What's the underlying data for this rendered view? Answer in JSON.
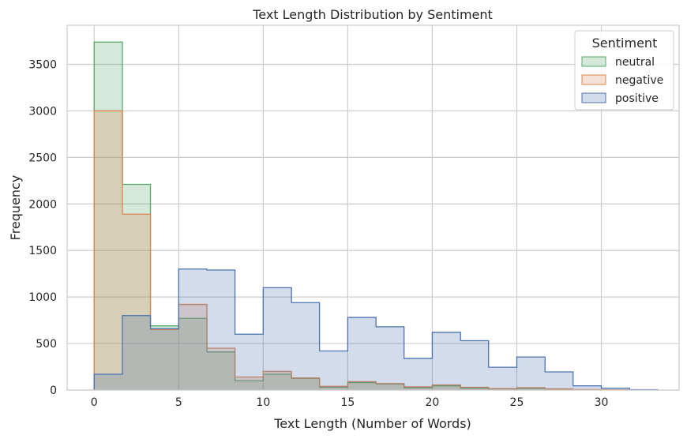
{
  "chart_data": {
    "type": "area",
    "title": "Text Length Distribution by Sentiment",
    "xlabel": "Text Length (Number of Words)",
    "ylabel": "Frequency",
    "xlim": [
      -1.6,
      34.6
    ],
    "ylim": [
      0,
      3920
    ],
    "xticks": [
      0,
      5,
      10,
      15,
      20,
      25,
      30
    ],
    "yticks": [
      0,
      500,
      1000,
      1500,
      2000,
      2500,
      3000,
      3500
    ],
    "grid": true,
    "legend": {
      "title": "Sentiment",
      "position": "top-right"
    },
    "bin_edges": [
      0,
      1.67,
      3.33,
      5.0,
      6.67,
      8.33,
      10.0,
      11.67,
      13.33,
      15.0,
      16.67,
      18.33,
      20.0,
      21.67,
      23.33,
      25.0,
      26.67,
      28.33,
      30.0,
      31.67,
      33.33
    ],
    "series": [
      {
        "name": "neutral",
        "color": "#55a868",
        "fill": "#55a868",
        "values": [
          3740,
          2210,
          690,
          770,
          410,
          100,
          170,
          125,
          30,
          80,
          65,
          25,
          45,
          20,
          12,
          18,
          8,
          3,
          2,
          1
        ]
      },
      {
        "name": "negative",
        "color": "#dd8452",
        "fill": "#dd8452",
        "values": [
          3000,
          1890,
          650,
          920,
          450,
          140,
          200,
          130,
          40,
          90,
          70,
          35,
          55,
          30,
          15,
          25,
          12,
          5,
          3,
          1
        ]
      },
      {
        "name": "positive",
        "color": "#4c72b0",
        "fill": "#4c72b0",
        "values": [
          170,
          800,
          660,
          1300,
          1290,
          600,
          1100,
          940,
          420,
          780,
          680,
          340,
          620,
          530,
          245,
          355,
          195,
          45,
          20,
          4
        ]
      }
    ]
  }
}
